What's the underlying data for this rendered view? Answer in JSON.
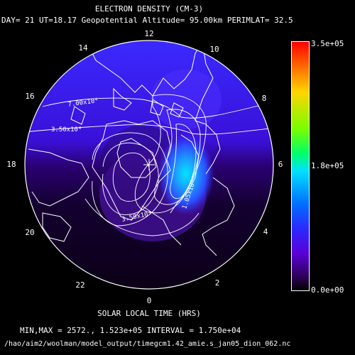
{
  "title": "ELECTRON DENSITY (CM-3)",
  "subtitle": "DAY= 21 UT=18.17 Geopotential Altitude= 95.00km PERIMLAT= 32.5",
  "xlabel": "SOLAR LOCAL TIME (HRS)",
  "minmax_line": "MIN,MAX =      2572., 1.523e+05 INTERVAL =  1.750e+04",
  "file_path": "/hao/aim2/woolman/model_output/timegcm1.42_amie.s_jan05_dion_062.nc",
  "hour_labels": {
    "h12": "12",
    "h10": "10",
    "h8": "8",
    "h6": "6",
    "h4": "4",
    "h2": "2",
    "h0": "0",
    "h22": "22",
    "h20": "20",
    "h18": "18",
    "h16": "16",
    "h14": "14"
  },
  "contour_labels": {
    "c1": "7.00x10⁴",
    "c2": "3.50x10⁴",
    "c3": "3.50x10⁴",
    "c4": "1.05x10⁵"
  },
  "colorbar": {
    "max": "3.5e+05",
    "mid": "1.8e+05",
    "min": "0.0e+00",
    "colors": [
      "#ff0000",
      "#ffd400",
      "#00ff6a",
      "#00e0ff",
      "#2a2aff",
      "#5a00d8",
      "#000000"
    ]
  }
}
